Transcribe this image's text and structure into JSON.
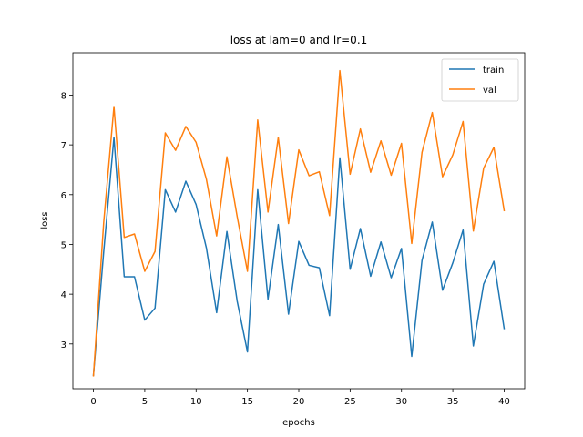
{
  "chart_data": {
    "type": "line",
    "title": "loss at lam=0 and lr=0.1",
    "xlabel": "epochs",
    "ylabel": "loss",
    "xlim": [
      -2,
      42
    ],
    "ylim": [
      2.1,
      8.85
    ],
    "xticks": [
      0,
      5,
      10,
      15,
      20,
      25,
      30,
      35,
      40
    ],
    "yticks": [
      3,
      4,
      5,
      6,
      7,
      8
    ],
    "grid": false,
    "legend_position": "upper right",
    "x": [
      0,
      1,
      2,
      3,
      4,
      5,
      6,
      7,
      8,
      9,
      10,
      11,
      12,
      13,
      14,
      15,
      16,
      17,
      18,
      19,
      20,
      21,
      22,
      23,
      24,
      25,
      26,
      27,
      28,
      29,
      30,
      31,
      32,
      33,
      34,
      35,
      36,
      37,
      38,
      39,
      40
    ],
    "series": [
      {
        "name": "train",
        "color": "#1f77b4",
        "values": [
          2.37,
          4.85,
          7.15,
          4.35,
          4.35,
          3.48,
          3.72,
          6.1,
          5.65,
          6.27,
          5.8,
          4.93,
          3.63,
          5.26,
          3.86,
          2.84,
          6.1,
          3.9,
          5.4,
          3.6,
          5.06,
          4.58,
          4.53,
          3.57,
          6.74,
          4.5,
          5.32,
          4.36,
          5.05,
          4.33,
          4.92,
          2.75,
          4.68,
          5.45,
          4.08,
          4.63,
          5.29,
          2.96,
          4.2,
          4.66,
          3.31
        ]
      },
      {
        "name": "val",
        "color": "#ff7f0e",
        "values": [
          2.36,
          5.44,
          7.77,
          5.14,
          5.21,
          4.46,
          4.86,
          7.24,
          6.89,
          7.37,
          7.05,
          6.31,
          5.17,
          6.76,
          5.56,
          4.46,
          7.5,
          5.65,
          7.15,
          5.42,
          6.9,
          6.38,
          6.46,
          5.58,
          8.49,
          6.41,
          7.32,
          6.45,
          7.08,
          6.39,
          7.03,
          5.02,
          6.85,
          7.65,
          6.36,
          6.8,
          7.47,
          5.27,
          6.53,
          6.95,
          5.68
        ]
      }
    ]
  }
}
